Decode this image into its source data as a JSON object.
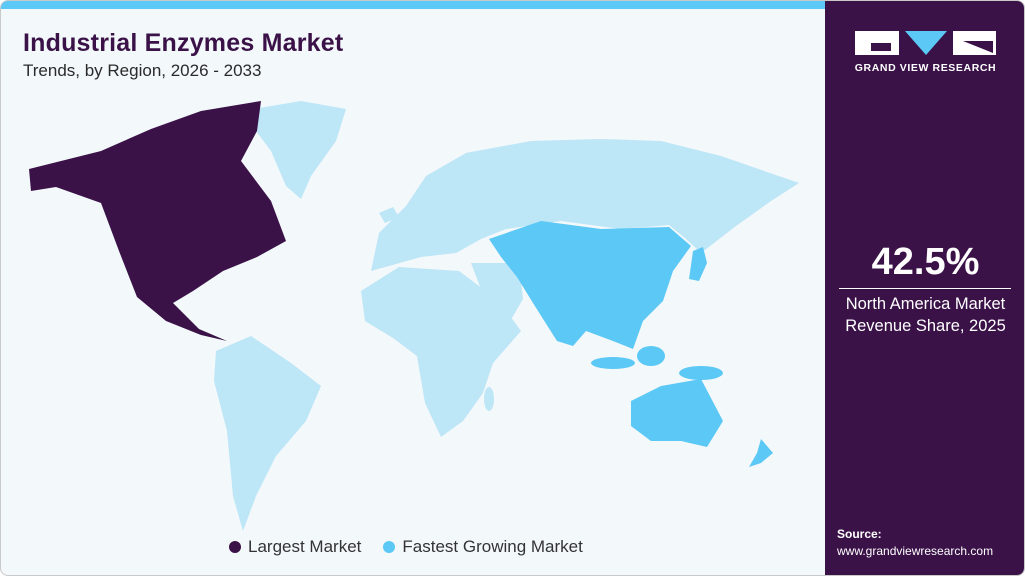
{
  "header": {
    "title": "Industrial Enzymes Market",
    "subtitle": "Trends, by Region, 2026 - 2033"
  },
  "colors": {
    "largest": "#3a1248",
    "fastest": "#5bc8f5",
    "other": "#bde6f7",
    "background": "#f3f8fb",
    "accent_bar": "#5bc8f5"
  },
  "map": {
    "largest_market": "North America",
    "fastest_growing_market": "Asia Pacific"
  },
  "legend": {
    "items": [
      {
        "label": "Largest Market",
        "color": "#3a1248"
      },
      {
        "label": "Fastest Growing Market",
        "color": "#5bc8f5"
      }
    ]
  },
  "panel": {
    "brand": "GRAND VIEW RESEARCH",
    "stat_value": "42.5%",
    "stat_line1": "North America Market",
    "stat_line2": "Revenue Share, 2025",
    "source_label": "Source:",
    "source_url": "www.grandviewresearch.com"
  }
}
